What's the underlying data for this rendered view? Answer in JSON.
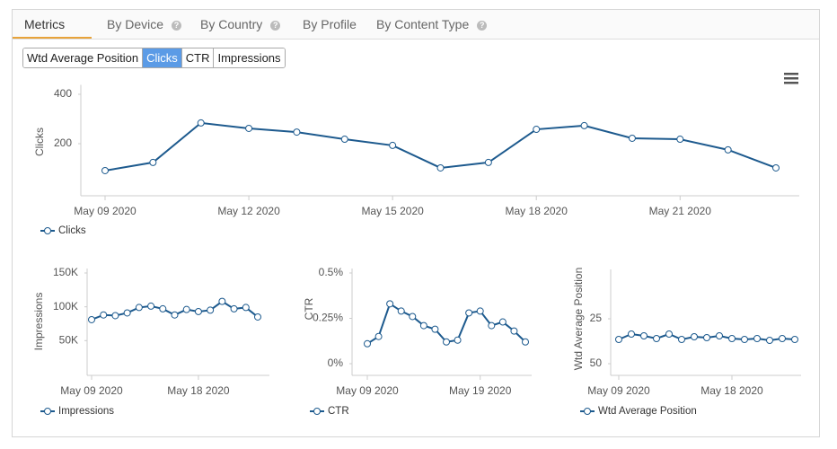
{
  "tabs": [
    {
      "label": "Metrics",
      "active": true
    },
    {
      "label": "By Device",
      "help": true
    },
    {
      "label": "By Country",
      "help": true
    },
    {
      "label": "By Profile"
    },
    {
      "label": "By Content Type",
      "help": true
    }
  ],
  "buttons": [
    {
      "label": "Wtd Average Position"
    },
    {
      "label": "Clicks",
      "active": true
    },
    {
      "label": "CTR"
    },
    {
      "label": "Impressions"
    }
  ],
  "chart_data": [
    {
      "type": "line",
      "y_label": "Clicks",
      "x": [
        "May 09 2020",
        "May 10 2020",
        "May 11 2020",
        "May 12 2020",
        "May 13 2020",
        "May 14 2020",
        "May 15 2020",
        "May 16 2020",
        "May 17 2020",
        "May 18 2020",
        "May 19 2020",
        "May 20 2020",
        "May 21 2020",
        "May 22 2020",
        "May 23 2020"
      ],
      "xticks": [
        "May 09 2020",
        "May 12 2020",
        "May 15 2020",
        "May 18 2020",
        "May 21 2020"
      ],
      "series": [
        {
          "name": "Clicks",
          "color": "#1d5a8e",
          "values": [
            91,
            124,
            284,
            262,
            247,
            218,
            193,
            102,
            124,
            258,
            273,
            222,
            218,
            175,
            102
          ]
        }
      ],
      "ylim": [
        0,
        420
      ],
      "yticks": [
        200,
        400
      ]
    },
    {
      "type": "line",
      "y_label": "Impressions",
      "x": [
        "May 09 2020",
        "May 10 2020",
        "May 11 2020",
        "May 12 2020",
        "May 13 2020",
        "May 14 2020",
        "May 15 2020",
        "May 16 2020",
        "May 17 2020",
        "May 18 2020",
        "May 19 2020",
        "May 20 2020",
        "May 21 2020",
        "May 22 2020",
        "May 23 2020"
      ],
      "xticks": [
        "May 09 2020",
        "May 18 2020"
      ],
      "series": [
        {
          "name": "Impressions",
          "color": "#1d5a8e",
          "values": [
            81000,
            88000,
            87000,
            91000,
            99000,
            101000,
            97000,
            88000,
            96000,
            93000,
            95000,
            108000,
            97000,
            99000,
            85000
          ]
        }
      ],
      "ylim": [
        0,
        150000
      ],
      "yticks": [
        {
          "value": 50000,
          "label": "50K"
        },
        {
          "value": 100000,
          "label": "100K"
        },
        {
          "value": 150000,
          "label": "150K"
        }
      ]
    },
    {
      "type": "line",
      "y_label": "CTR",
      "x": [
        "May 09 2020",
        "May 10 2020",
        "May 11 2020",
        "May 12 2020",
        "May 13 2020",
        "May 14 2020",
        "May 15 2020",
        "May 16 2020",
        "May 17 2020",
        "May 18 2020",
        "May 19 2020",
        "May 20 2020",
        "May 21 2020",
        "May 22 2020",
        "May 23 2020"
      ],
      "xticks": [
        "May 09 2020",
        "May 19 2020"
      ],
      "series": [
        {
          "name": "CTR",
          "color": "#1d5a8e",
          "values": [
            0.11,
            0.15,
            0.33,
            0.29,
            0.26,
            0.21,
            0.19,
            0.12,
            0.13,
            0.28,
            0.29,
            0.21,
            0.23,
            0.18,
            0.12
          ]
        }
      ],
      "ylim": [
        0,
        0.5
      ],
      "yticks": [
        {
          "value": 0,
          "label": "0%"
        },
        {
          "value": 0.25,
          "label": "0.25%"
        },
        {
          "value": 0.5,
          "label": "0.5%"
        }
      ]
    },
    {
      "type": "line",
      "y_label": "Wtd Average Position",
      "x": [
        "May 09 2020",
        "May 10 2020",
        "May 11 2020",
        "May 12 2020",
        "May 13 2020",
        "May 14 2020",
        "May 15 2020",
        "May 16 2020",
        "May 17 2020",
        "May 18 2020",
        "May 19 2020",
        "May 20 2020",
        "May 21 2020",
        "May 22 2020",
        "May 23 2020"
      ],
      "xticks": [
        "May 09 2020",
        "May 18 2020"
      ],
      "series": [
        {
          "name": "Wtd Average Position",
          "color": "#1d5a8e",
          "values": [
            36.5,
            33.5,
            34.5,
            36,
            33.5,
            36.5,
            35,
            35.5,
            34.5,
            36,
            36.5,
            36,
            37,
            36,
            36.5
          ]
        }
      ],
      "ylim": [
        0,
        52
      ],
      "reversed": true,
      "yticks": [
        25,
        50
      ]
    }
  ]
}
